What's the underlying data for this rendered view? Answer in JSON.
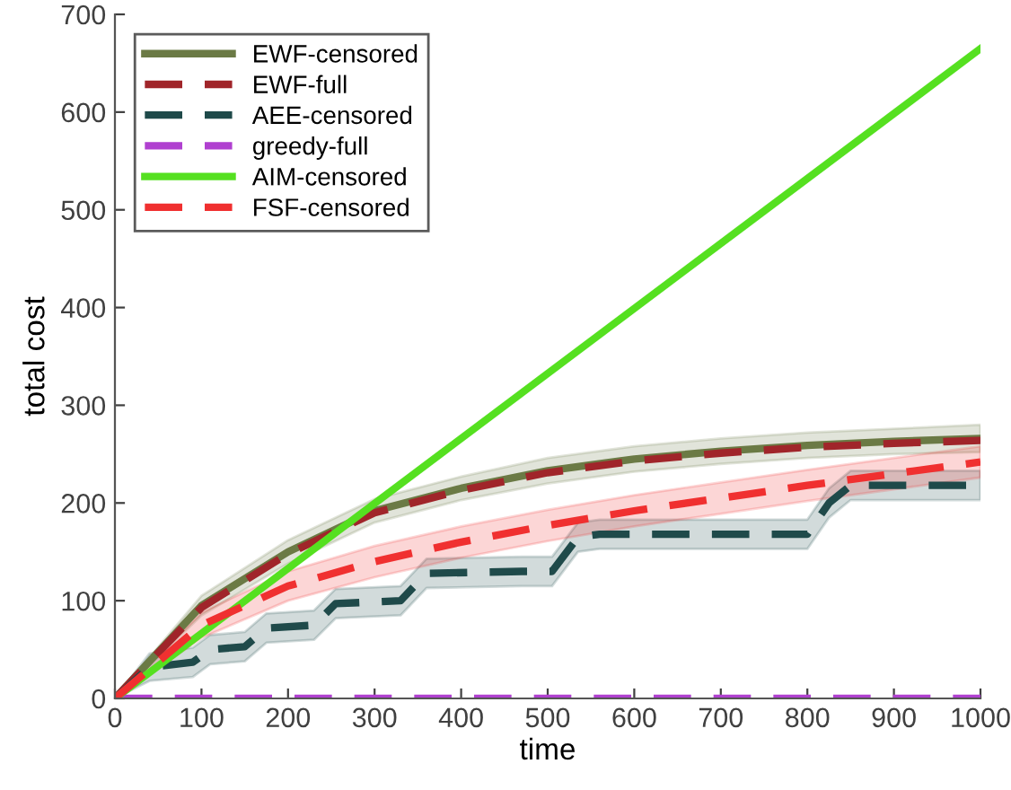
{
  "chart_data": {
    "type": "line",
    "xlabel": "time",
    "ylabel": "total cost",
    "xlim": [
      0,
      1000
    ],
    "ylim": [
      0,
      700
    ],
    "xticks": [
      0,
      100,
      200,
      300,
      400,
      500,
      600,
      700,
      800,
      900,
      1000
    ],
    "yticks": [
      0,
      100,
      200,
      300,
      400,
      500,
      600,
      700
    ],
    "grid": false,
    "legend": "top left",
    "marker": "none",
    "series": [
      {
        "name": "EWF-censored",
        "color": "#6b7a45",
        "line_style": "solid",
        "x": [
          0,
          100,
          200,
          300,
          400,
          500,
          600,
          700,
          800,
          900,
          1000
        ],
        "values": [
          0,
          95,
          150,
          192,
          215,
          233,
          245,
          253,
          259,
          263,
          266
        ],
        "lower": [
          0,
          85,
          138,
          180,
          203,
          220,
          232,
          240,
          246,
          250,
          252
        ],
        "upper": [
          0,
          105,
          162,
          204,
          227,
          246,
          258,
          266,
          272,
          276,
          280
        ]
      },
      {
        "name": "EWF-full",
        "color": "#a0252a",
        "line_style": "dashed",
        "x": [
          0,
          100,
          200,
          300,
          400,
          500,
          600,
          700,
          800,
          900,
          1000
        ],
        "values": [
          0,
          93,
          148,
          190,
          213,
          231,
          243,
          251,
          257,
          261,
          264
        ]
      },
      {
        "name": "AEE-censored",
        "color": "#1f4a4a",
        "line_style": "dashed",
        "x": [
          0,
          40,
          90,
          110,
          150,
          175,
          230,
          255,
          330,
          360,
          470,
          505,
          535,
          560,
          800,
          825,
          850,
          1000
        ],
        "values": [
          0,
          32,
          37,
          50,
          53,
          72,
          75,
          97,
          100,
          128,
          130,
          130,
          165,
          168,
          168,
          200,
          218,
          218
        ],
        "lower": [
          0,
          18,
          22,
          35,
          38,
          57,
          60,
          82,
          85,
          113,
          115,
          115,
          150,
          153,
          153,
          185,
          203,
          203
        ],
        "upper": [
          0,
          46,
          52,
          65,
          68,
          87,
          90,
          112,
          115,
          143,
          145,
          145,
          180,
          183,
          183,
          215,
          233,
          233
        ]
      },
      {
        "name": "greedy-full",
        "color": "#b040d0",
        "line_style": "dashed",
        "x": [
          0,
          1000
        ],
        "values": [
          0,
          0
        ]
      },
      {
        "name": "AIM-censored",
        "color": "#55e020",
        "line_style": "solid",
        "x": [
          0,
          1000
        ],
        "values": [
          0,
          665
        ]
      },
      {
        "name": "FSF-censored",
        "color": "#f03030",
        "line_style": "dashed",
        "x": [
          0,
          100,
          200,
          300,
          400,
          500,
          600,
          700,
          800,
          900,
          1000
        ],
        "values": [
          0,
          75,
          115,
          140,
          160,
          177,
          192,
          205,
          218,
          230,
          242
        ],
        "lower": [
          0,
          62,
          100,
          124,
          144,
          161,
          176,
          189,
          202,
          214,
          226
        ],
        "upper": [
          0,
          88,
          130,
          156,
          176,
          193,
          208,
          221,
          234,
          246,
          258
        ]
      }
    ]
  }
}
